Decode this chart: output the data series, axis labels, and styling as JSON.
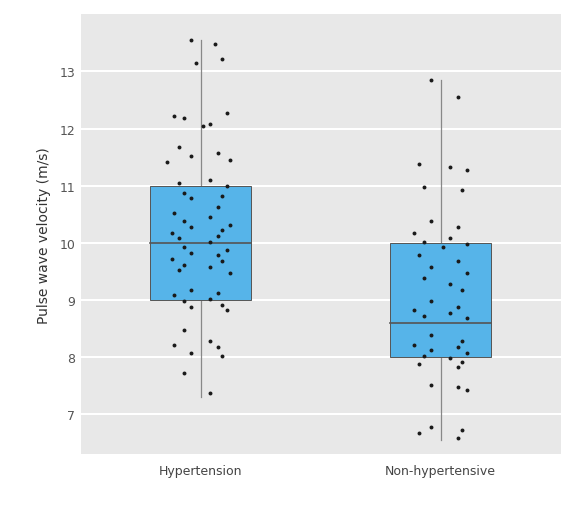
{
  "categories": [
    "Hypertension",
    "Non-hypertensive"
  ],
  "box_stats": {
    "Hypertension": {
      "q1": 9.0,
      "median": 10.0,
      "q3": 11.0,
      "whisker_low": 7.3,
      "whisker_high": 13.55
    },
    "Non-hypertensive": {
      "q1": 8.0,
      "median": 8.6,
      "q3": 10.0,
      "whisker_low": 6.55,
      "whisker_high": 12.85
    }
  },
  "jitter_hypertension": [
    13.55,
    13.48,
    13.15,
    13.22,
    12.18,
    12.08,
    12.22,
    12.28,
    12.05,
    11.68,
    11.58,
    11.52,
    11.45,
    11.42,
    11.1,
    11.05,
    11.0,
    10.88,
    10.82,
    10.78,
    10.62,
    10.52,
    10.45,
    10.38,
    10.32,
    10.28,
    10.22,
    10.18,
    10.12,
    10.08,
    10.02,
    9.92,
    9.88,
    9.82,
    9.78,
    9.72,
    9.68,
    9.62,
    9.58,
    9.52,
    9.48,
    9.18,
    9.12,
    9.08,
    9.02,
    8.98,
    8.92,
    8.88,
    8.82,
    8.48,
    8.28,
    8.22,
    8.18,
    8.08,
    8.02,
    7.72,
    7.38
  ],
  "jitter_hypertension_x": [
    -0.04,
    0.06,
    -0.02,
    0.09,
    -0.07,
    0.04,
    -0.11,
    0.11,
    0.01,
    -0.09,
    0.07,
    -0.04,
    0.12,
    -0.14,
    0.04,
    -0.09,
    0.11,
    -0.07,
    0.09,
    -0.04,
    0.07,
    -0.11,
    0.04,
    -0.07,
    0.12,
    -0.04,
    0.09,
    -0.12,
    0.07,
    -0.09,
    0.04,
    -0.07,
    0.11,
    -0.04,
    0.07,
    -0.12,
    0.09,
    -0.07,
    0.04,
    -0.09,
    0.12,
    -0.04,
    0.07,
    -0.11,
    0.04,
    -0.07,
    0.09,
    -0.04,
    0.11,
    -0.07,
    0.04,
    -0.11,
    0.07,
    -0.04,
    0.09,
    -0.07,
    0.04
  ],
  "jitter_nonhypertensive": [
    12.85,
    12.55,
    11.38,
    11.32,
    11.28,
    10.98,
    10.92,
    10.38,
    10.28,
    10.18,
    10.08,
    10.02,
    9.98,
    9.92,
    9.78,
    9.68,
    9.58,
    9.48,
    9.38,
    9.28,
    9.18,
    8.98,
    8.88,
    8.82,
    8.78,
    8.72,
    8.68,
    8.38,
    8.28,
    8.22,
    8.18,
    8.12,
    8.08,
    8.02,
    7.98,
    7.92,
    7.88,
    7.82,
    7.52,
    7.48,
    7.42,
    6.78,
    6.72,
    6.68,
    6.58
  ],
  "jitter_nonhypertensive_x": [
    -0.04,
    0.07,
    -0.09,
    0.04,
    0.11,
    -0.07,
    0.09,
    -0.04,
    0.07,
    -0.11,
    0.04,
    -0.07,
    0.11,
    0.01,
    -0.09,
    0.07,
    -0.04,
    0.11,
    -0.07,
    0.04,
    0.09,
    -0.04,
    0.07,
    -0.11,
    0.04,
    -0.07,
    0.11,
    -0.04,
    0.09,
    -0.11,
    0.07,
    -0.04,
    0.11,
    -0.07,
    0.04,
    0.09,
    -0.09,
    0.07,
    -0.04,
    0.07,
    0.11,
    -0.04,
    0.09,
    -0.09,
    0.07
  ],
  "box_color": "#56b4e9",
  "box_edge_color": "#555555",
  "whisker_color": "#888888",
  "dot_color": "#1a1a1a",
  "outer_background": "#ffffff",
  "panel_background": "#e8e8e8",
  "grid_color": "#ffffff",
  "ylabel": "Pulse wave velocity (m/s)",
  "ylim": [
    6.3,
    14.0
  ],
  "yticks": [
    7,
    8,
    9,
    10,
    11,
    12,
    13
  ],
  "box_width": 0.42,
  "dot_size": 8,
  "dot_alpha": 1.0,
  "tick_label_fontsize": 9,
  "axis_label_fontsize": 10
}
